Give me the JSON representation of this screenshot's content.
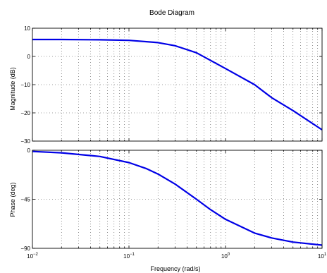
{
  "chart_data": {
    "type": "line",
    "title": "Bode Diagram",
    "xlabel": "Frequency  (rad/s)",
    "xscale": "log",
    "xlim": [
      0.01,
      10
    ],
    "x_tick_labels": [
      {
        "base": "10",
        "exp": "−2"
      },
      {
        "base": "10",
        "exp": "−1"
      },
      {
        "base": "10",
        "exp": "0"
      },
      {
        "base": "10",
        "exp": "1"
      }
    ],
    "grid": true,
    "line_color": "#0000e6",
    "magnitude": {
      "ylabel": "Magnitude (dB)",
      "ylim": [
        -30,
        10
      ],
      "yticks": [
        10,
        0,
        -10,
        -20,
        -30
      ],
      "ytick_labels": [
        "10",
        "0",
        "−10",
        "−20",
        "−30"
      ],
      "x": [
        0.01,
        0.02,
        0.05,
        0.1,
        0.2,
        0.3,
        0.5,
        1,
        2,
        3,
        5,
        10
      ],
      "y": [
        6.0,
        6.0,
        5.9,
        5.7,
        4.9,
        3.8,
        1.3,
        -4.3,
        -10.0,
        -14.6,
        -19.2,
        -26.0
      ]
    },
    "phase": {
      "ylabel": "Phase (deg)",
      "ylim": [
        -90,
        0
      ],
      "yticks": [
        0,
        -45,
        -90
      ],
      "ytick_labels": [
        "0",
        "−45",
        "−90"
      ],
      "x": [
        0.01,
        0.02,
        0.05,
        0.1,
        0.15,
        0.2,
        0.3,
        0.5,
        0.7,
        1,
        2,
        3,
        5,
        10
      ],
      "y": [
        -1.1,
        -2.3,
        -5.7,
        -11.3,
        -16.7,
        -21.8,
        -31.0,
        -45.0,
        -54.5,
        -63.4,
        -76.0,
        -80.5,
        -84.3,
        -87.1
      ]
    }
  }
}
